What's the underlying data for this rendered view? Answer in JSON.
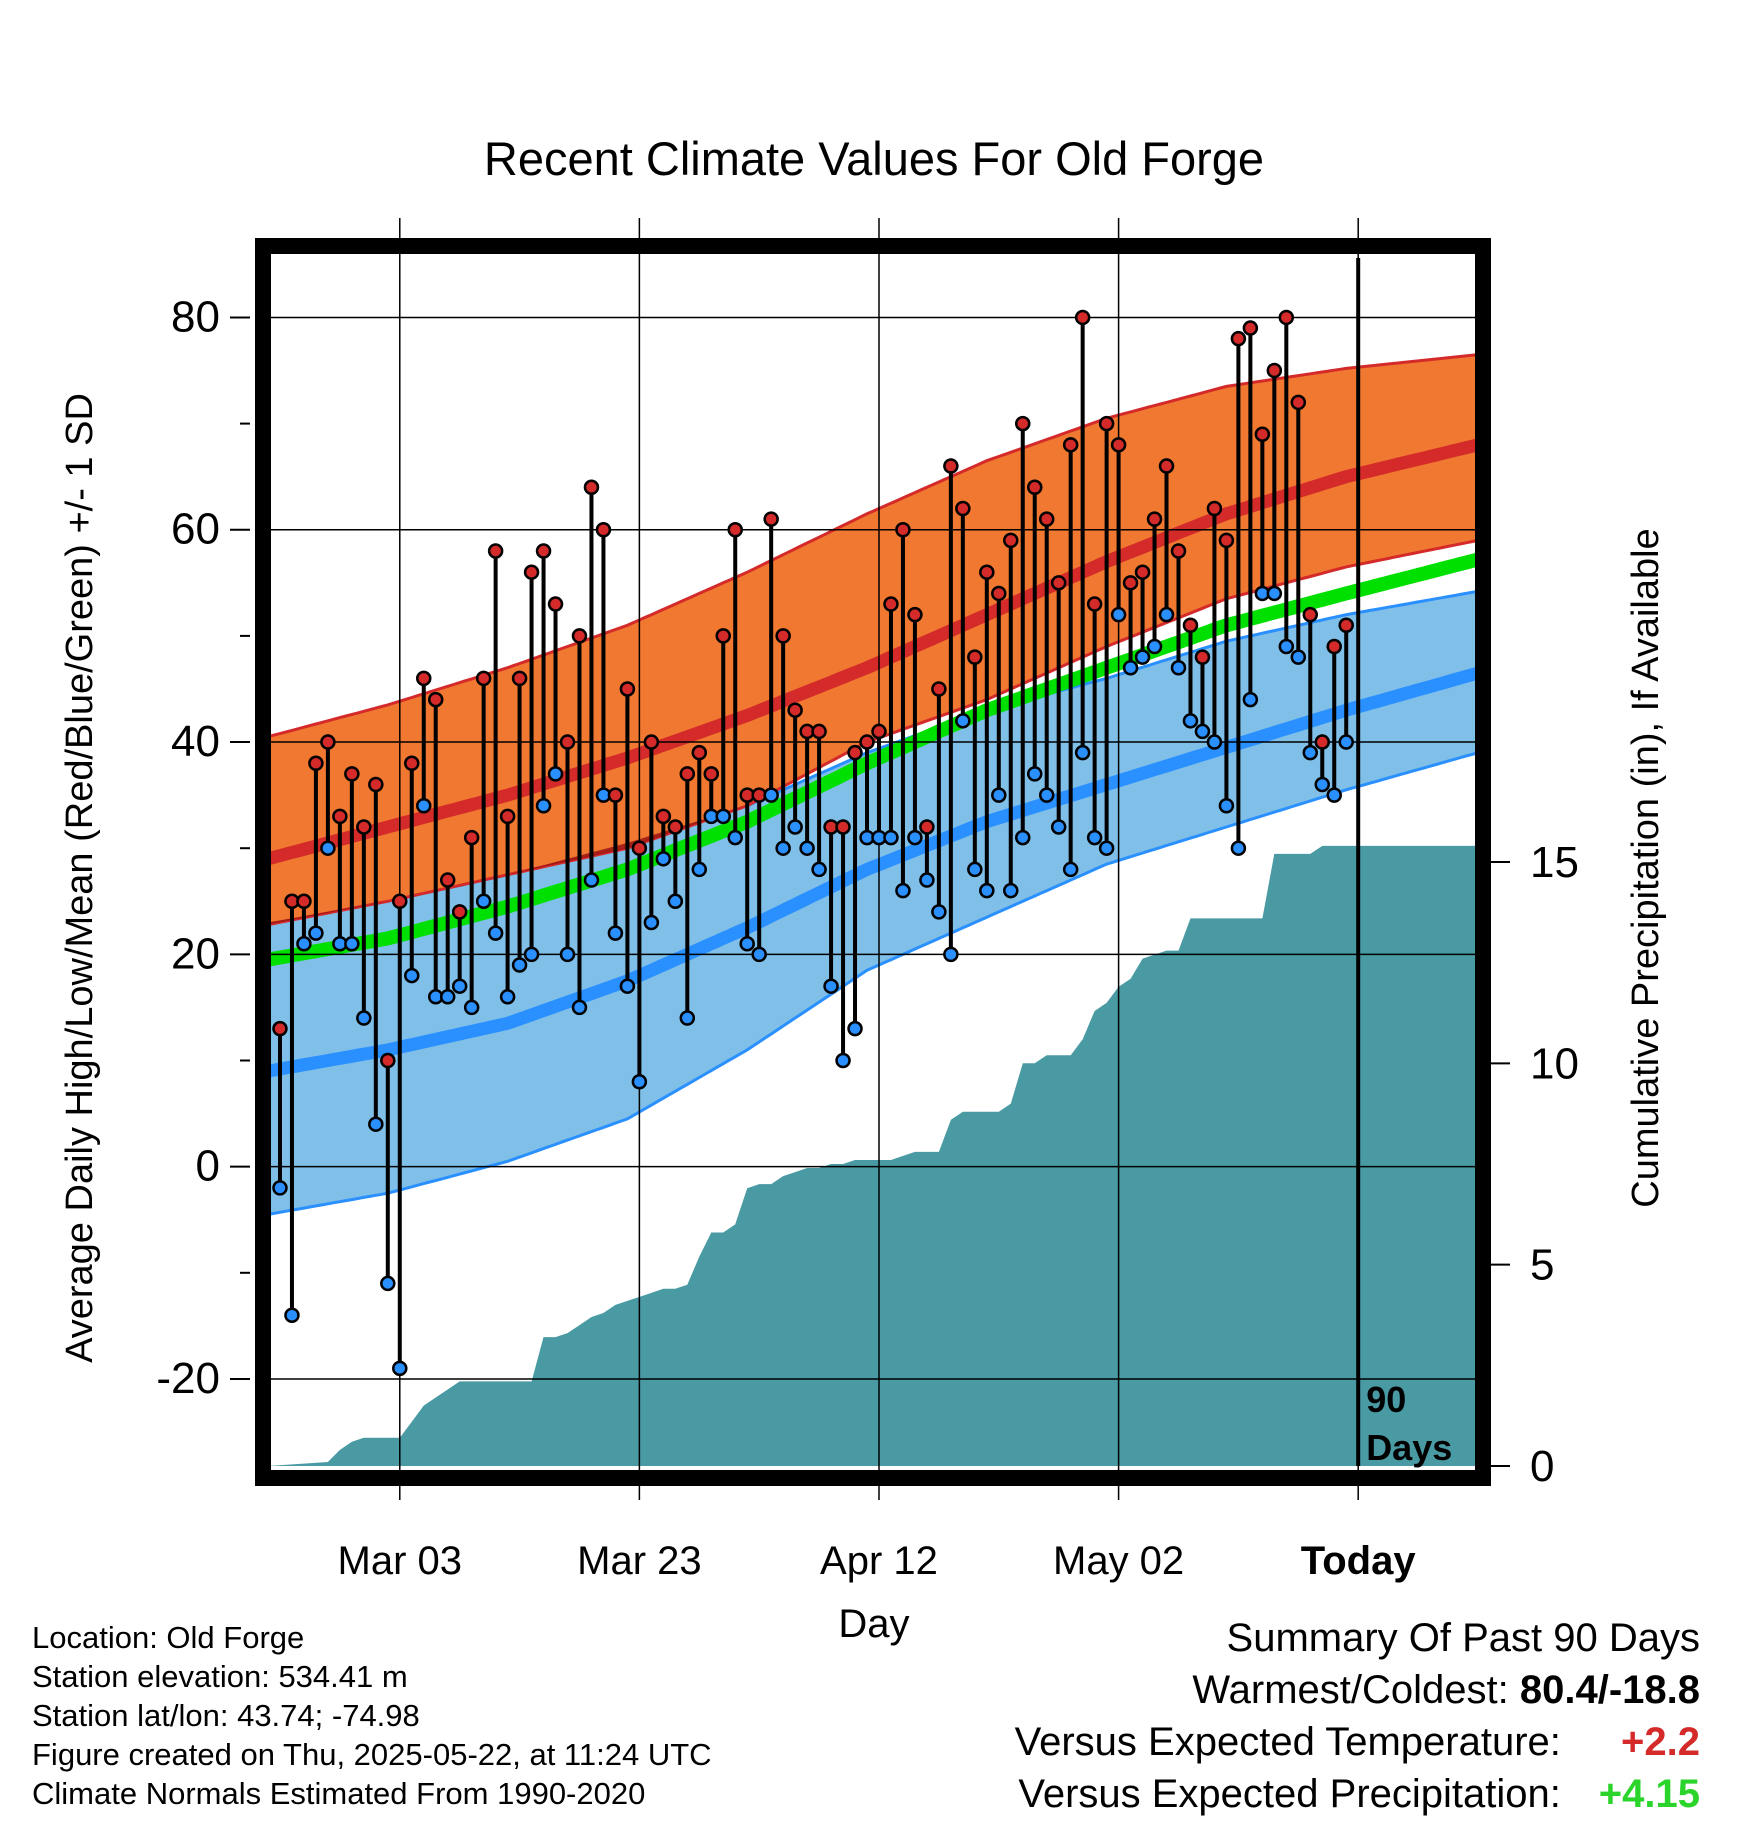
{
  "chart_data": {
    "type": "line",
    "title": "Recent Climate Values For Old Forge",
    "xlabel": "Day",
    "ylabel": "Average Daily High/Low/Mean (Red/Blue/Green) +/- 1 SD",
    "y2label": "Cumulative Precipitation (in), If Available",
    "x_tick_labels": [
      "Mar 03",
      "Mar 23",
      "Apr 12",
      "May 02",
      "Today"
    ],
    "x_tick_days": [
      11,
      31,
      51,
      71,
      91
    ],
    "xlim": [
      0,
      101
    ],
    "ylim": [
      -28.2,
      85.6
    ],
    "y_ticks": [
      -20,
      0,
      20,
      40,
      60,
      80
    ],
    "y2lim": [
      0,
      30
    ],
    "y2_ticks": [
      0,
      5,
      10,
      15
    ],
    "grid": true,
    "today_day": 91,
    "today_label_line1": "90",
    "today_label_line2": "Days",
    "colors": {
      "high_band": "#f07830",
      "high_mean": "#d42a2a",
      "low_band": "#80c0e8",
      "low_mean": "#2a90ff",
      "mean_band": "#00e000",
      "overlap": "#9a1414",
      "precip": "#4a9aa4",
      "high_dot": "#d42a2a",
      "low_dot": "#2a90ff"
    },
    "normals": {
      "days": [
        0,
        10,
        20,
        30,
        40,
        50,
        60,
        70,
        80,
        90,
        101
      ],
      "high_mean": [
        29,
        32,
        35,
        38.5,
        42.5,
        47,
        52,
        57,
        61.5,
        65,
        68
      ],
      "high_sd_upper": [
        40.5,
        43.5,
        47,
        51,
        56,
        61.5,
        66.5,
        70.5,
        73.5,
        75.2,
        76.5
      ],
      "high_sd_lower": [
        22.8,
        25,
        27.5,
        30,
        34,
        40,
        44,
        49,
        53.5,
        56.5,
        59
      ],
      "low_mean": [
        9,
        11,
        13.5,
        17.5,
        22.5,
        28,
        32.5,
        36,
        39.5,
        43,
        46.5
      ],
      "low_sd_upper": [
        23,
        25,
        27.5,
        30.5,
        34,
        39,
        43,
        46,
        49.5,
        52,
        54.2
      ],
      "low_sd_lower": [
        -4.5,
        -2.5,
        0.5,
        4.5,
        11,
        18.5,
        23.5,
        28.5,
        32,
        35.5,
        39
      ],
      "daily_mean": [
        19.5,
        21.5,
        24.5,
        28,
        32.5,
        38,
        43,
        47,
        51,
        54,
        57.2
      ]
    },
    "series": [
      {
        "name": "High",
        "values": [
          13,
          25,
          25,
          38,
          40,
          33,
          37,
          32,
          36,
          10,
          25,
          38,
          46,
          44,
          27,
          24,
          31,
          46,
          58,
          33,
          46,
          56,
          58,
          53,
          40,
          50,
          64,
          60,
          35,
          45,
          30,
          40,
          33,
          32,
          37,
          39,
          37,
          50,
          60,
          35,
          35,
          61,
          50,
          43,
          41,
          41,
          32,
          32,
          39,
          40,
          41,
          53,
          60,
          52,
          32,
          45,
          66,
          62,
          48,
          56,
          54,
          59,
          70,
          64,
          61,
          55,
          68,
          80,
          53,
          70,
          68,
          55,
          56,
          61,
          66,
          58,
          51,
          48,
          62,
          59,
          78,
          79,
          69,
          75,
          80,
          72,
          52,
          40,
          49,
          51
        ]
      },
      {
        "name": "Low",
        "values": [
          -2,
          -14,
          21,
          22,
          30,
          21,
          21,
          14,
          4,
          -11,
          -19,
          18,
          34,
          16,
          16,
          17,
          15,
          25,
          22,
          16,
          19,
          20,
          34,
          37,
          20,
          15,
          27,
          35,
          22,
          17,
          8,
          23,
          29,
          25,
          14,
          28,
          33,
          33,
          31,
          21,
          20,
          35,
          30,
          32,
          30,
          28,
          17,
          10,
          13,
          31,
          31,
          31,
          26,
          31,
          27,
          24,
          20,
          42,
          28,
          26,
          35,
          26,
          31,
          37,
          35,
          32,
          28,
          39,
          31,
          30,
          52,
          47,
          48,
          49,
          52,
          47,
          42,
          41,
          40,
          34,
          30,
          44,
          54,
          54,
          49,
          48,
          39,
          36,
          35,
          40
        ]
      }
    ],
    "precip_cumulative": {
      "days": [
        0,
        5,
        6,
        7,
        8,
        9,
        10,
        11,
        12,
        13,
        14,
        15,
        16,
        17,
        18,
        19,
        20,
        21,
        22,
        23,
        24,
        25,
        26,
        27,
        28,
        29,
        30,
        31,
        32,
        33,
        34,
        35,
        36,
        37,
        38,
        39,
        40,
        41,
        42,
        43,
        44,
        45,
        46,
        47,
        48,
        49,
        50,
        51,
        52,
        53,
        54,
        55,
        56,
        57,
        58,
        59,
        60,
        61,
        62,
        63,
        64,
        65,
        66,
        67,
        68,
        69,
        70,
        71,
        72,
        73,
        74,
        75,
        76,
        77,
        78,
        79,
        80,
        81,
        82,
        83,
        84,
        85,
        86,
        87,
        88,
        89,
        90,
        91,
        101
      ],
      "values": [
        0,
        0.1,
        0.4,
        0.6,
        0.7,
        0.7,
        0.7,
        0.7,
        1.1,
        1.5,
        1.7,
        1.9,
        2.1,
        2.1,
        2.1,
        2.1,
        2.1,
        2.1,
        2.1,
        3.2,
        3.2,
        3.3,
        3.5,
        3.7,
        3.8,
        4.0,
        4.1,
        4.2,
        4.3,
        4.4,
        4.4,
        4.5,
        5.2,
        5.8,
        5.8,
        6.0,
        6.9,
        7.0,
        7.0,
        7.2,
        7.3,
        7.4,
        7.4,
        7.5,
        7.5,
        7.6,
        7.6,
        7.6,
        7.6,
        7.7,
        7.8,
        7.8,
        7.8,
        8.6,
        8.8,
        8.8,
        8.8,
        8.8,
        9.0,
        10.0,
        10.0,
        10.2,
        10.2,
        10.2,
        10.6,
        11.3,
        11.5,
        11.9,
        12.1,
        12.6,
        12.7,
        12.8,
        12.8,
        13.6,
        13.6,
        13.6,
        13.6,
        13.6,
        13.6,
        13.6,
        15.2,
        15.2,
        15.2,
        15.2,
        15.4,
        15.4,
        15.4,
        15.4,
        15.4
      ]
    }
  },
  "info": {
    "location": "Location: Old Forge",
    "elevation": "Station elevation: 534.41 m",
    "latlon": "Station lat/lon: 43.74; -74.98",
    "created": "Figure created on Thu, 2025-05-22, at 11:24 UTC",
    "normals": "Climate Normals Estimated From 1990-2020"
  },
  "summary": {
    "title": "Summary Of Past 90 Days",
    "warmest_label": "Warmest/Coldest:",
    "warmest_value": "80.4/-18.8",
    "temp_label": "Versus Expected Temperature:",
    "temp_value": "+2.2",
    "precip_label": "Versus Expected Precipitation:",
    "precip_value": "+4.15"
  }
}
